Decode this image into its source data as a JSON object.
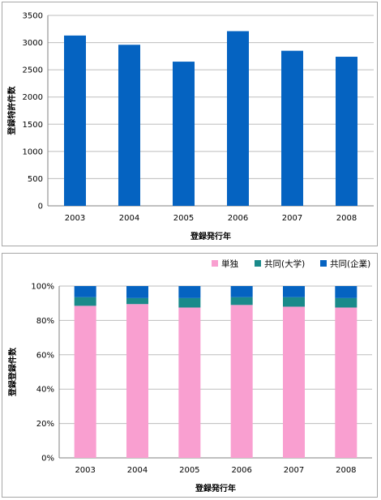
{
  "chart_data": [
    {
      "type": "bar",
      "categories": [
        "2003",
        "2004",
        "2005",
        "2006",
        "2007",
        "2008"
      ],
      "values": [
        3130,
        2960,
        2650,
        3210,
        2850,
        2740
      ],
      "xlabel": "登録発行年",
      "ylabel": "登録特許件数",
      "ylim": [
        0,
        3500
      ],
      "yticks": [
        0,
        500,
        1000,
        1500,
        2000,
        2500,
        3000,
        3500
      ],
      "grid": true,
      "color": "#0563c1"
    },
    {
      "type": "bar",
      "stacked": "percent",
      "categories": [
        "2003",
        "2004",
        "2005",
        "2006",
        "2007",
        "2008"
      ],
      "series": [
        {
          "name": "単独",
          "values": [
            88.5,
            89.5,
            87.5,
            89,
            88,
            87.5
          ],
          "color": "#f99fd0"
        },
        {
          "name": "共同(大学)",
          "values": [
            5,
            3.5,
            5.5,
            4.5,
            5.5,
            5.5
          ],
          "color": "#1a8a8a"
        },
        {
          "name": "共同(企業)",
          "values": [
            6.5,
            7,
            7,
            6.5,
            6.5,
            7
          ],
          "color": "#0563c1"
        }
      ],
      "xlabel": "登録発行年",
      "ylabel": "登録登録件数",
      "ylim": [
        0,
        100
      ],
      "yticks": [
        "0%",
        "20%",
        "40%",
        "60%",
        "80%",
        "100%"
      ],
      "legend": "top-right",
      "grid": true
    }
  ]
}
